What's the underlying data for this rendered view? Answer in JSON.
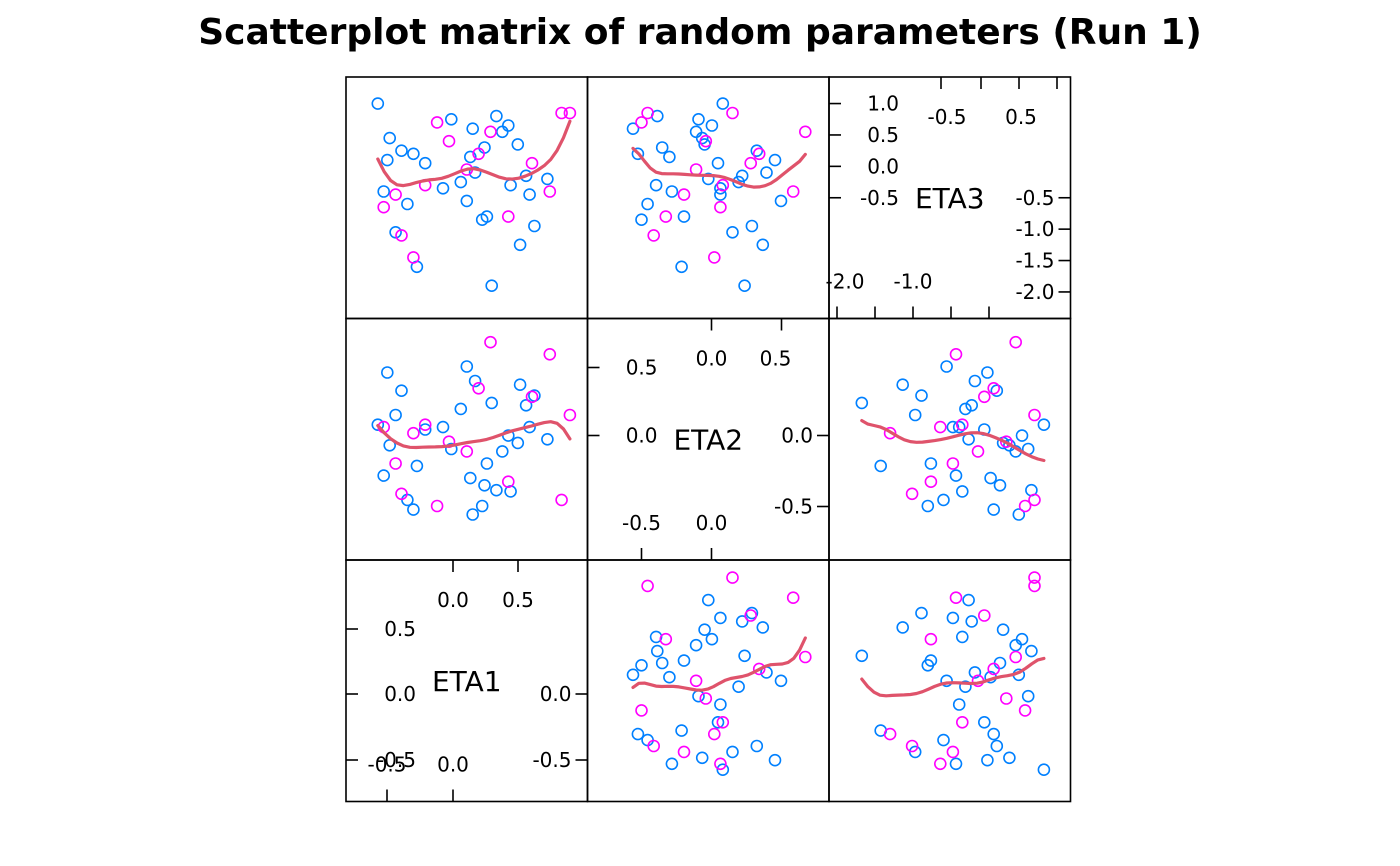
{
  "chart_data": {
    "type": "scatter",
    "subtype": "scatterplot-matrix",
    "title": "Scatterplot matrix of random parameters (Run 1)",
    "variables": [
      "ETA1",
      "ETA2",
      "ETA3"
    ],
    "variable_order_on_diagonal": "ETA1 bottom-left, ETA2 center, ETA3 top-right",
    "ranges": {
      "ETA1": [
        -0.85,
        0.95
      ],
      "ETA2": [
        -0.88,
        0.88
      ],
      "ETA3": [
        -2.2,
        1.2
      ]
    },
    "diagonal_ticks": {
      "ETA1": {
        "inner": [
          "-0.5",
          "0.0"
        ],
        "outer": [
          "0.0",
          "0.5"
        ],
        "left": [
          "0.5",
          "0.0",
          "-0.5"
        ],
        "right": [
          "0.0",
          "-0.5"
        ]
      },
      "ETA2": {
        "upper": [
          "0.0",
          "0.5"
        ],
        "lower": [
          "-0.5",
          "0.0"
        ],
        "left": [
          "0.5",
          "0.0"
        ],
        "right": [
          "0.0",
          "-0.5"
        ]
      },
      "ETA3": {
        "upper": [
          "-0.5",
          "0.5"
        ],
        "lower": [
          "-2.0",
          "-1.0"
        ],
        "left": [
          "1.0",
          "0.5",
          "0.0",
          "-0.5"
        ],
        "right": [
          "-0.5",
          "-1.0",
          "-1.5",
          "-2.0"
        ]
      }
    },
    "group_colors": {
      "group1": "#0080ff",
      "group2": "#ff00ff"
    },
    "smooth_color": "#df536b",
    "grid": false,
    "series": [
      {
        "group": "group1",
        "eta1": [
          0.2,
          -0.37,
          0.08,
          0.0,
          0.55,
          -0.6,
          -0.7,
          -0.45,
          0.62,
          0.4,
          0.35,
          -0.15,
          0.3,
          -0.62,
          0.12,
          -0.55,
          -0.4,
          0.22,
          0.48,
          0.58,
          0.1,
          -0.3,
          0.05,
          0.42,
          -0.65,
          0.73,
          0.26,
          -0.5,
          0.5,
          -0.08,
          0.18
        ],
        "eta2": [
          -0.38,
          -0.22,
          -0.32,
          0.25,
          0.28,
          -0.05,
          0.12,
          -0.5,
          0.36,
          0.03,
          -0.1,
          0.1,
          -0.42,
          0.55,
          0.48,
          0.2,
          -0.58,
          -0.2,
          -0.03,
          0.1,
          -0.62,
          0.08,
          0.6,
          -0.43,
          -0.3,
          0.0,
          0.3,
          0.4,
          0.45,
          -0.08,
          -0.55
        ],
        "eta3": [
          0.3,
          -1.6,
          0.15,
          -0.25,
          -0.15,
          0.45,
          1.0,
          -0.6,
          -0.95,
          0.65,
          0.55,
          -0.35,
          0.8,
          0.1,
          -0.1,
          -1.05,
          0.2,
          -0.8,
          0.35,
          -0.45,
          0.6,
          0.05,
          -0.55,
          -0.3,
          -0.4,
          -0.2,
          -1.9,
          0.25,
          -1.25,
          0.75,
          -0.85
        ]
      },
      {
        "group": "group2",
        "eta1": [
          0.92,
          0.85,
          -0.65,
          -0.55,
          -0.2,
          -0.4,
          0.15,
          0.4,
          0.6,
          -0.3,
          0.05,
          -0.5,
          -0.1,
          0.25,
          0.75
        ],
        "eta2": [
          0.2,
          -0.5,
          0.1,
          -0.2,
          -0.55,
          0.05,
          0.42,
          -0.35,
          0.35,
          0.12,
          -0.1,
          -0.45,
          -0.02,
          0.8,
          0.7
        ],
        "eta3": [
          0.85,
          0.85,
          -0.65,
          -0.45,
          0.7,
          -1.45,
          0.2,
          -0.8,
          0.05,
          -0.3,
          -0.05,
          -1.1,
          0.4,
          0.55,
          -0.4
        ]
      }
    ]
  }
}
